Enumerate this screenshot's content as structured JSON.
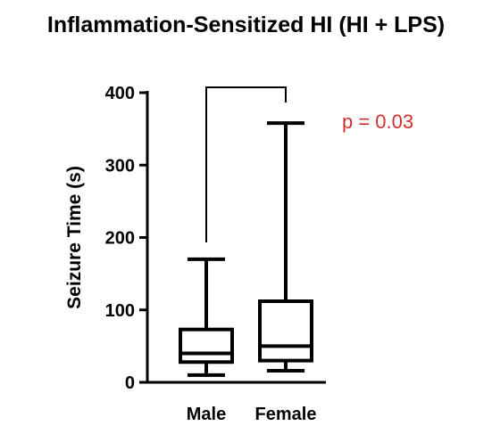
{
  "chart_data": {
    "type": "box",
    "title": "Inflammation-Sensitized HI (HI + LPS)",
    "xlabel": "",
    "ylabel": "Seizure Time (s)",
    "ylim": [
      0,
      400
    ],
    "yticks": [
      0,
      100,
      200,
      300,
      400
    ],
    "categories": [
      "Male",
      "Female"
    ],
    "boxes": [
      {
        "category": "Male",
        "min": 10,
        "q1": 28,
        "median": 40,
        "q3": 73,
        "max": 170
      },
      {
        "category": "Female",
        "min": 16,
        "q1": 30,
        "median": 50,
        "q3": 112,
        "max": 358
      }
    ],
    "significance": {
      "groups": [
        "Male",
        "Female"
      ],
      "label": "p = 0.03",
      "color": "#d32f2f"
    }
  }
}
